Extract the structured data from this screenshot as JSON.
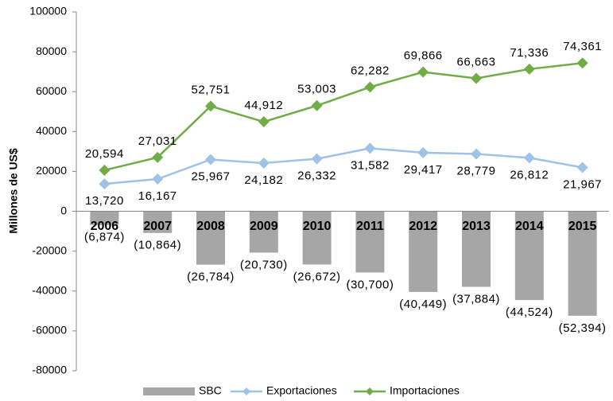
{
  "chart_data": {
    "type": "combo",
    "y_label": "Millones de US$",
    "categories": [
      "2006",
      "2007",
      "2008",
      "2009",
      "2010",
      "2011",
      "2012",
      "2013",
      "2014",
      "2015"
    ],
    "series": [
      {
        "name": "SBC",
        "type": "bar",
        "color": "#a6a6a6",
        "values": [
          -6874,
          -10864,
          -26784,
          -20730,
          -26672,
          -30700,
          -40449,
          -37884,
          -44524,
          -52394
        ],
        "value_labels": [
          "(6,874)",
          "(10,864)",
          "(26,784)",
          "(20,730)",
          "(26,672)",
          "(30,700)",
          "(40,449)",
          "(37,884)",
          "(44,524)",
          "(52,394)"
        ]
      },
      {
        "name": "Exportaciones",
        "type": "line",
        "color": "#9dc3e6",
        "values": [
          13720,
          16167,
          25967,
          24182,
          26332,
          31582,
          29417,
          28779,
          26812,
          21967
        ],
        "value_labels": [
          "13,720",
          "16,167",
          "25,967",
          "24,182",
          "26,332",
          "31,582",
          "29,417",
          "28,779",
          "26,812",
          "21,967"
        ]
      },
      {
        "name": "Importaciones",
        "type": "line",
        "color": "#70ad47",
        "values": [
          20594,
          27031,
          52751,
          44912,
          53003,
          62282,
          69866,
          66663,
          71336,
          74361
        ],
        "value_labels": [
          "20,594",
          "27,031",
          "52,751",
          "44,912",
          "53,003",
          "62,282",
          "69,866",
          "66,663",
          "71,336",
          "74,361"
        ]
      }
    ],
    "ylim": [
      -80000,
      100000
    ],
    "yticks": [
      -80000,
      -60000,
      -40000,
      -20000,
      0,
      20000,
      40000,
      60000,
      80000,
      100000
    ],
    "grid": false,
    "legend": "bottom"
  }
}
